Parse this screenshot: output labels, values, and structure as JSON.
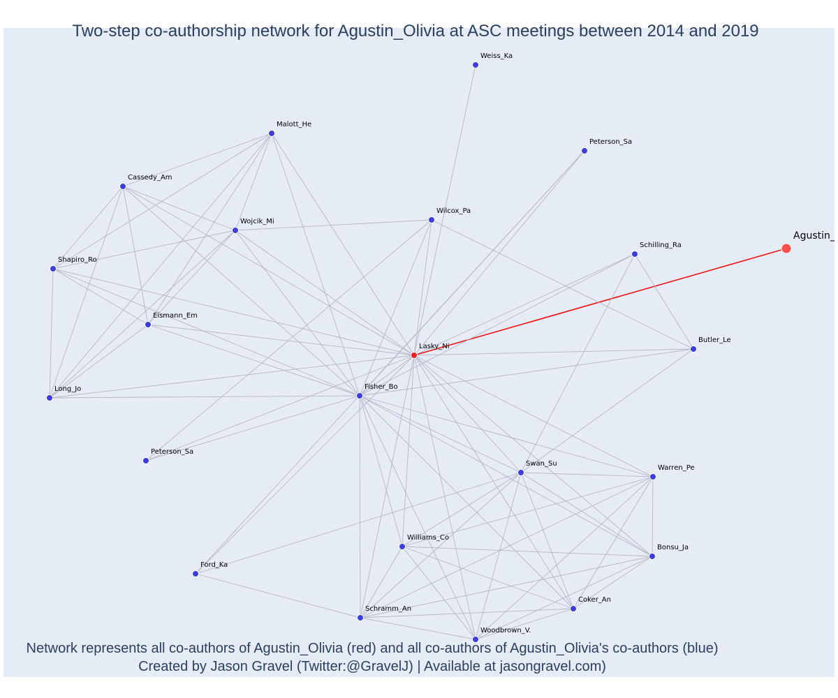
{
  "title": "Two-step co-authorship network for Agustin_Olivia at ASC meetings between 2014 and 2019",
  "footer": {
    "line1": "Network represents all co-authors of Agustin_Olivia (red) and all co-authors of Agustin_Olivia's co-authors (blue)",
    "line2": "Created by Jason Gravel (Twitter:@GravelJ) | Available at jasongravel.com)"
  },
  "colors": {
    "background": "#e5ecf6",
    "ego_node": "#ff4d4d",
    "coauthor_node": "#ee2222",
    "second_step_node": "#3d3ddb",
    "edge": "#b4b6c4",
    "ego_edge": "#ee1111"
  },
  "chart_data": {
    "type": "network",
    "ego": "Agustin_Olivia",
    "nodes": [
      {
        "id": "agustin",
        "label": "Agustin_",
        "group": "ego"
      },
      {
        "id": "lasky",
        "label": "Lasky_Ni",
        "group": "coauthor"
      },
      {
        "id": "fisher",
        "label": "Fisher_Bo",
        "group": "second_step"
      },
      {
        "id": "weiss",
        "label": "Weiss_Ka",
        "group": "second_step"
      },
      {
        "id": "malott",
        "label": "Malott_He",
        "group": "second_step"
      },
      {
        "id": "peterson1",
        "label": "Peterson_Sa",
        "group": "second_step"
      },
      {
        "id": "cassedy",
        "label": "Cassedy_Am",
        "group": "second_step"
      },
      {
        "id": "wilcox",
        "label": "Wilcox_Pa",
        "group": "second_step"
      },
      {
        "id": "wojcik",
        "label": "Wojcik_Mi",
        "group": "second_step"
      },
      {
        "id": "schilling",
        "label": "Schilling_Ra",
        "group": "second_step"
      },
      {
        "id": "shapiro",
        "label": "Shapiro_Ro",
        "group": "second_step"
      },
      {
        "id": "eismann",
        "label": "Eismann_Em",
        "group": "second_step"
      },
      {
        "id": "butler",
        "label": "Butler_Le",
        "group": "second_step"
      },
      {
        "id": "long",
        "label": "Long_Jo",
        "group": "second_step"
      },
      {
        "id": "peterson2",
        "label": "Peterson_Sa",
        "group": "second_step"
      },
      {
        "id": "swan",
        "label": "Swan_Su",
        "group": "second_step"
      },
      {
        "id": "warren",
        "label": "Warren_Pe",
        "group": "second_step"
      },
      {
        "id": "williams",
        "label": "Williams_Co",
        "group": "second_step"
      },
      {
        "id": "bonsu",
        "label": "Bonsu_Ja",
        "group": "second_step"
      },
      {
        "id": "ford",
        "label": "Ford_Ka",
        "group": "second_step"
      },
      {
        "id": "coker",
        "label": "Coker_An",
        "group": "second_step"
      },
      {
        "id": "schramm",
        "label": "Schramm_An",
        "group": "second_step"
      },
      {
        "id": "woodbrown",
        "label": "Woodbrown_V.",
        "group": "second_step"
      }
    ],
    "edges": [
      [
        "agustin",
        "lasky"
      ],
      [
        "lasky",
        "fisher"
      ],
      [
        "lasky",
        "weiss"
      ],
      [
        "lasky",
        "malott"
      ],
      [
        "lasky",
        "peterson1"
      ],
      [
        "lasky",
        "cassedy"
      ],
      [
        "lasky",
        "wilcox"
      ],
      [
        "lasky",
        "wojcik"
      ],
      [
        "lasky",
        "schilling"
      ],
      [
        "lasky",
        "shapiro"
      ],
      [
        "lasky",
        "eismann"
      ],
      [
        "lasky",
        "butler"
      ],
      [
        "lasky",
        "long"
      ],
      [
        "lasky",
        "peterson2"
      ],
      [
        "lasky",
        "swan"
      ],
      [
        "lasky",
        "warren"
      ],
      [
        "lasky",
        "williams"
      ],
      [
        "lasky",
        "bonsu"
      ],
      [
        "lasky",
        "coker"
      ],
      [
        "lasky",
        "schramm"
      ],
      [
        "lasky",
        "woodbrown"
      ],
      [
        "lasky",
        "ford"
      ],
      [
        "fisher",
        "malott"
      ],
      [
        "fisher",
        "peterson1"
      ],
      [
        "fisher",
        "cassedy"
      ],
      [
        "fisher",
        "wilcox"
      ],
      [
        "fisher",
        "wojcik"
      ],
      [
        "fisher",
        "schilling"
      ],
      [
        "fisher",
        "shapiro"
      ],
      [
        "fisher",
        "eismann"
      ],
      [
        "fisher",
        "butler"
      ],
      [
        "fisher",
        "long"
      ],
      [
        "fisher",
        "peterson2"
      ],
      [
        "fisher",
        "swan"
      ],
      [
        "fisher",
        "warren"
      ],
      [
        "fisher",
        "williams"
      ],
      [
        "fisher",
        "bonsu"
      ],
      [
        "fisher",
        "coker"
      ],
      [
        "fisher",
        "schramm"
      ],
      [
        "fisher",
        "woodbrown"
      ],
      [
        "malott",
        "cassedy"
      ],
      [
        "malott",
        "wojcik"
      ],
      [
        "malott",
        "shapiro"
      ],
      [
        "malott",
        "eismann"
      ],
      [
        "malott",
        "long"
      ],
      [
        "cassedy",
        "wojcik"
      ],
      [
        "cassedy",
        "shapiro"
      ],
      [
        "cassedy",
        "eismann"
      ],
      [
        "cassedy",
        "long"
      ],
      [
        "wojcik",
        "wilcox"
      ],
      [
        "wojcik",
        "shapiro"
      ],
      [
        "wojcik",
        "eismann"
      ],
      [
        "wojcik",
        "long"
      ],
      [
        "shapiro",
        "eismann"
      ],
      [
        "shapiro",
        "long"
      ],
      [
        "eismann",
        "long"
      ],
      [
        "peterson1",
        "ford"
      ],
      [
        "wilcox",
        "butler"
      ],
      [
        "wilcox",
        "peterson2"
      ],
      [
        "schilling",
        "butler"
      ],
      [
        "schilling",
        "swan"
      ],
      [
        "butler",
        "swan"
      ],
      [
        "swan",
        "warren"
      ],
      [
        "swan",
        "williams"
      ],
      [
        "swan",
        "bonsu"
      ],
      [
        "swan",
        "coker"
      ],
      [
        "swan",
        "schramm"
      ],
      [
        "swan",
        "woodbrown"
      ],
      [
        "swan",
        "ford"
      ],
      [
        "warren",
        "williams"
      ],
      [
        "warren",
        "bonsu"
      ],
      [
        "warren",
        "coker"
      ],
      [
        "warren",
        "schramm"
      ],
      [
        "warren",
        "woodbrown"
      ],
      [
        "williams",
        "bonsu"
      ],
      [
        "williams",
        "coker"
      ],
      [
        "williams",
        "schramm"
      ],
      [
        "williams",
        "woodbrown"
      ],
      [
        "bonsu",
        "coker"
      ],
      [
        "bonsu",
        "schramm"
      ],
      [
        "bonsu",
        "woodbrown"
      ],
      [
        "coker",
        "schramm"
      ],
      [
        "coker",
        "woodbrown"
      ],
      [
        "schramm",
        "woodbrown"
      ],
      [
        "schramm",
        "ford"
      ]
    ]
  }
}
